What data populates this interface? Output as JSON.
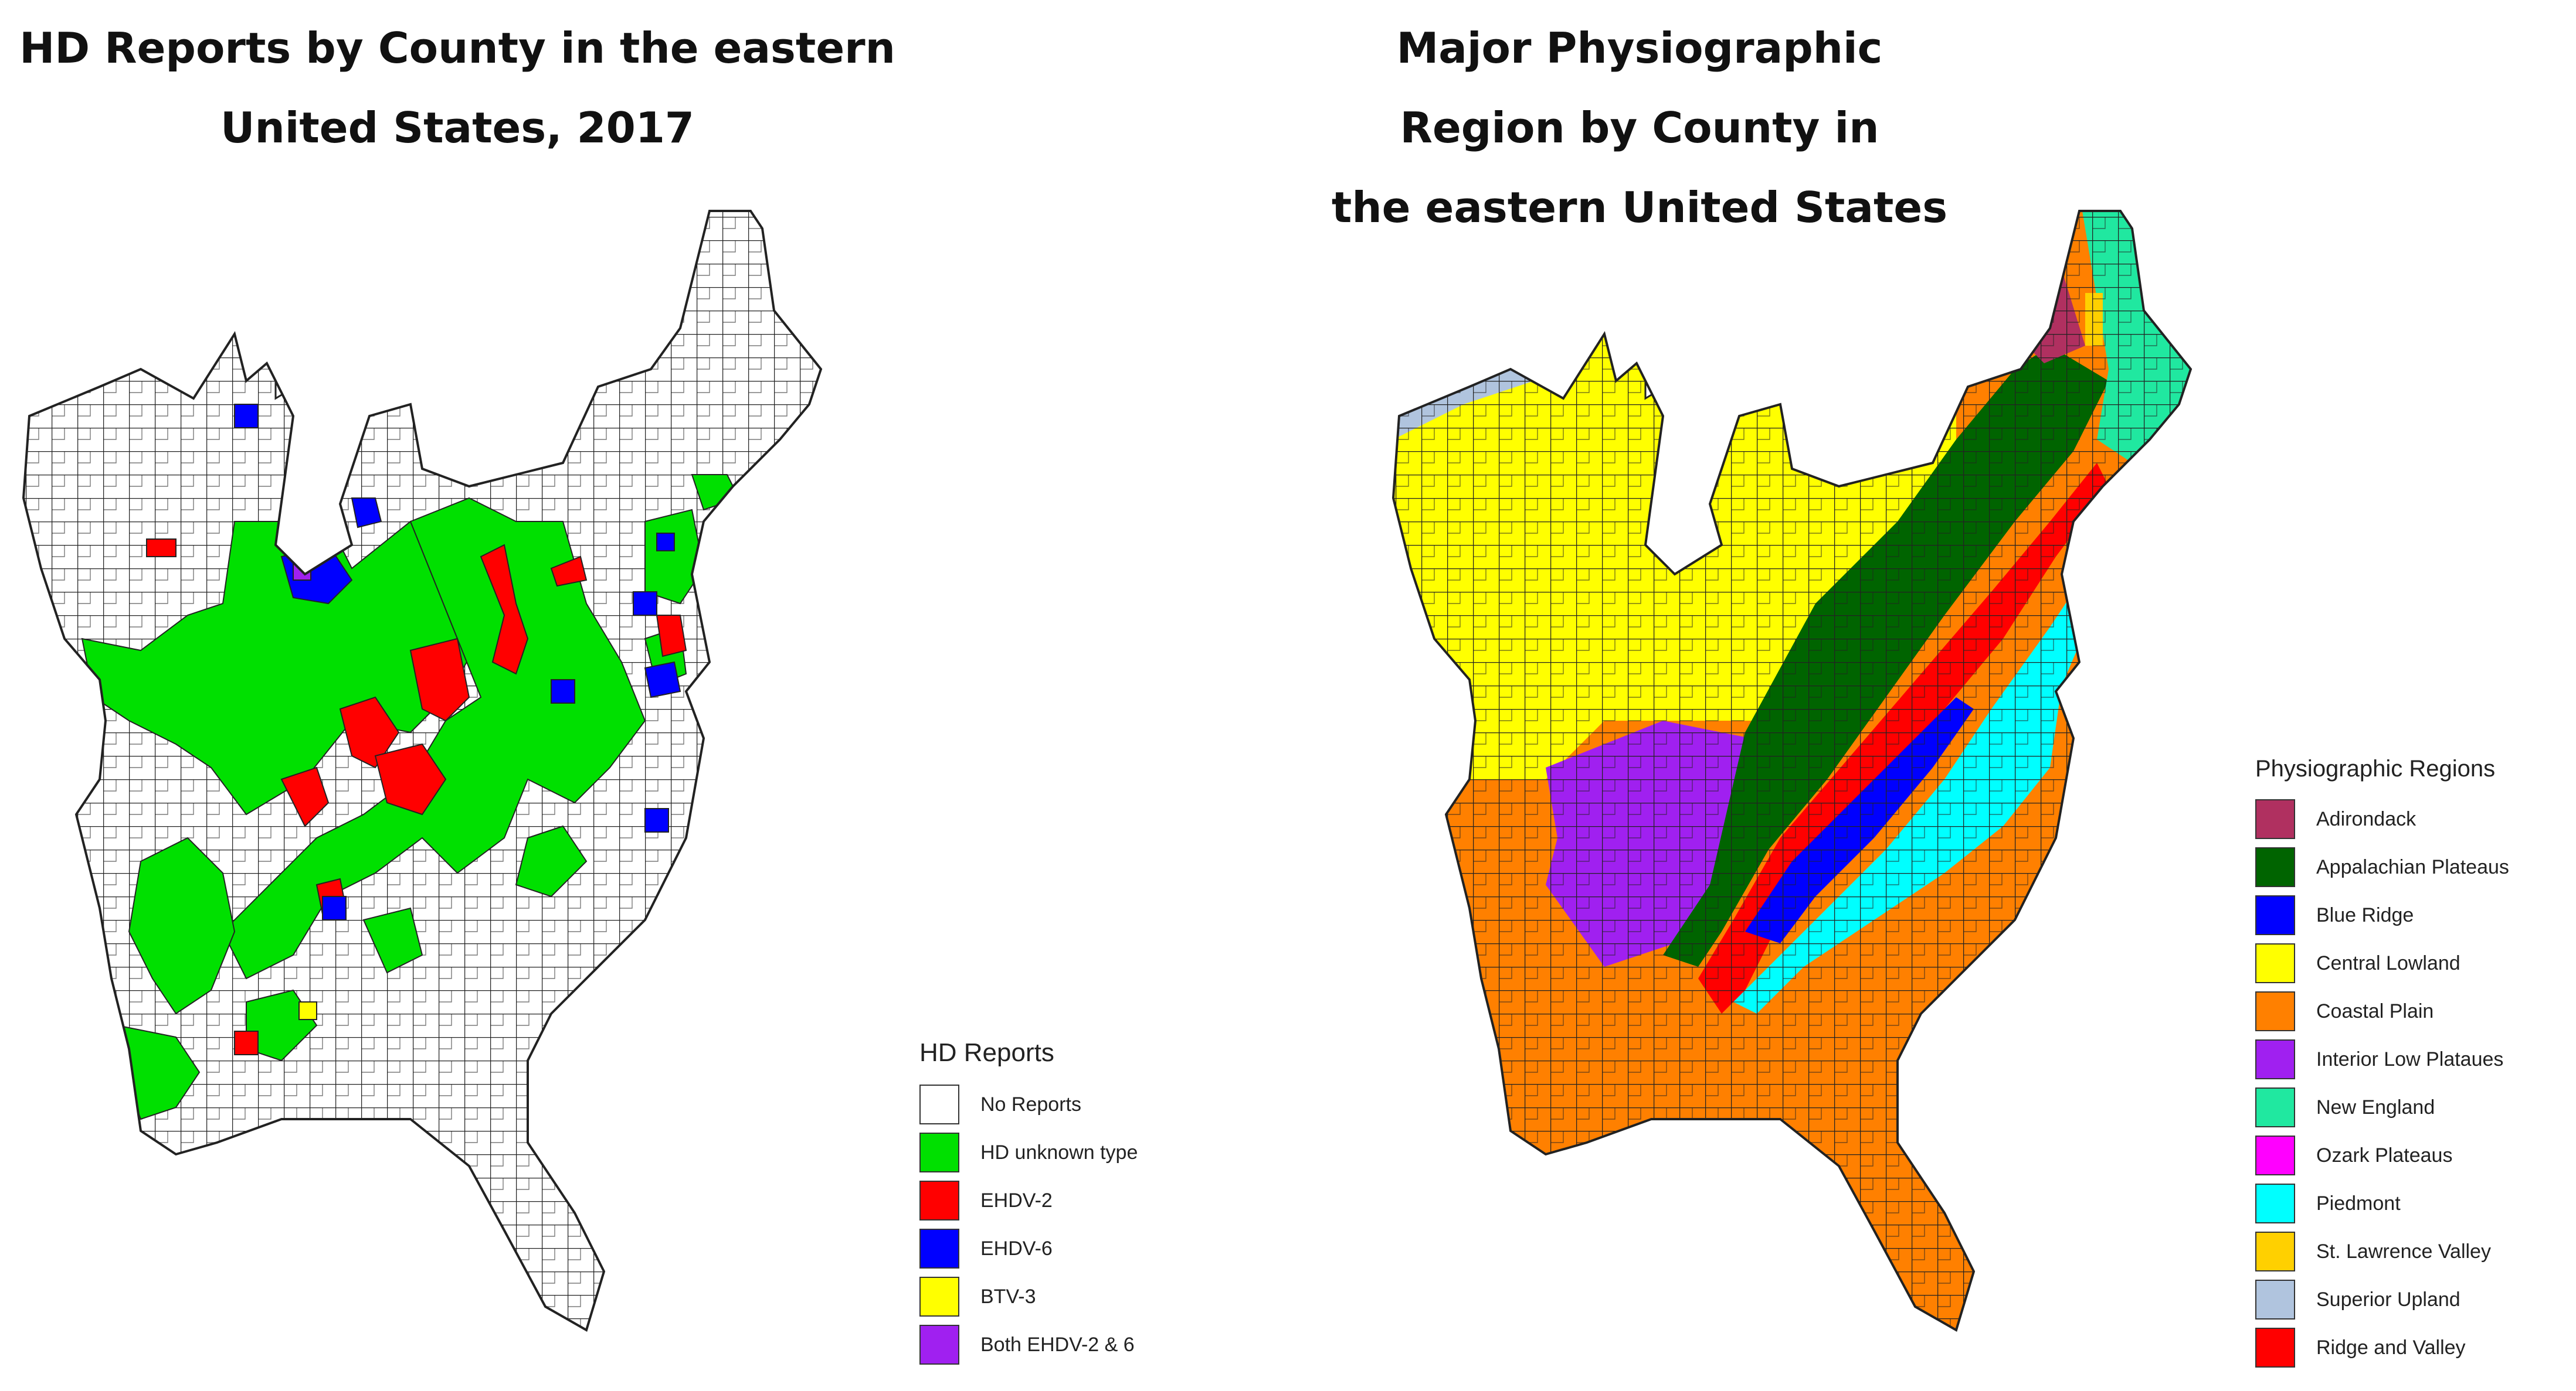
{
  "left_map": {
    "title_line1": "HD Reports by County in the eastern",
    "title_line2": "United States, 2017",
    "legend_title": "HD Reports",
    "legend": [
      {
        "label": "No Reports",
        "color": "#ffffff"
      },
      {
        "label": "HD unknown type",
        "color": "#00e000"
      },
      {
        "label": "EHDV-2",
        "color": "#ff0000"
      },
      {
        "label": "EHDV-6",
        "color": "#0000ff"
      },
      {
        "label": "BTV-3",
        "color": "#ffff00"
      },
      {
        "label": "Both EHDV-2 & 6",
        "color": "#a020f0"
      }
    ]
  },
  "right_map": {
    "title_line1": "Major Physiographic Region by County in",
    "title_line2": "the eastern United States",
    "legend_title": "Physiographic Regions",
    "legend": [
      {
        "label": "Adirondack",
        "color": "#b03060"
      },
      {
        "label": "Appalachian Plateaus",
        "color": "#006400"
      },
      {
        "label": "Blue Ridge",
        "color": "#0000ff"
      },
      {
        "label": "Central Lowland",
        "color": "#ffff00"
      },
      {
        "label": "Coastal Plain",
        "color": "#ff8000"
      },
      {
        "label": "Interior Low Plataues",
        "color": "#a020f0"
      },
      {
        "label": "New England",
        "color": "#20e8a0"
      },
      {
        "label": "Ozark Plateaus",
        "color": "#ff00ff"
      },
      {
        "label": "Piedmont",
        "color": "#00ffff"
      },
      {
        "label": "St. Lawrence Valley",
        "color": "#ffd000"
      },
      {
        "label": "Superior Upland",
        "color": "#b0c4de"
      },
      {
        "label": "Ridge and Valley",
        "color": "#ff0000"
      }
    ]
  }
}
